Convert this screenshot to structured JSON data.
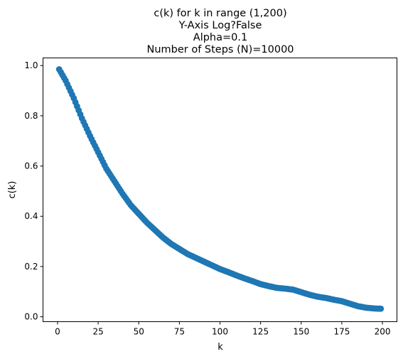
{
  "chart_data": {
    "type": "scatter",
    "title_lines": [
      "c(k) for k in range (1,200)",
      "Y-Axis Log?False",
      "Alpha=0.1",
      "Number of Steps (N)=10000"
    ],
    "xlabel": "k",
    "ylabel": "c(k)",
    "xlim": [
      -8.95,
      208.95
    ],
    "ylim": [
      -0.0196,
      1.0303
    ],
    "x_ticks": [
      0,
      25,
      50,
      75,
      100,
      125,
      150,
      175,
      200
    ],
    "y_ticks": [
      0.0,
      0.2,
      0.4,
      0.6,
      0.8,
      1.0
    ],
    "y_tick_labels": [
      "0.0",
      "0.2",
      "0.4",
      "0.6",
      "0.8",
      "1.0"
    ],
    "grid": false,
    "color": "#1f77b4",
    "series": [
      {
        "k_range": [
          1,
          199
        ],
        "anchors": [
          [
            1,
            0.985
          ],
          [
            5,
            0.94
          ],
          [
            10,
            0.87
          ],
          [
            15,
            0.79
          ],
          [
            20,
            0.72
          ],
          [
            25,
            0.655
          ],
          [
            30,
            0.59
          ],
          [
            35,
            0.54
          ],
          [
            40,
            0.49
          ],
          [
            45,
            0.445
          ],
          [
            50,
            0.41
          ],
          [
            55,
            0.375
          ],
          [
            60,
            0.345
          ],
          [
            65,
            0.315
          ],
          [
            70,
            0.29
          ],
          [
            75,
            0.27
          ],
          [
            80,
            0.25
          ],
          [
            85,
            0.235
          ],
          [
            90,
            0.22
          ],
          [
            95,
            0.205
          ],
          [
            100,
            0.19
          ],
          [
            105,
            0.178
          ],
          [
            110,
            0.165
          ],
          [
            115,
            0.153
          ],
          [
            120,
            0.142
          ],
          [
            125,
            0.13
          ],
          [
            130,
            0.122
          ],
          [
            135,
            0.115
          ],
          [
            140,
            0.112
          ],
          [
            145,
            0.108
          ],
          [
            150,
            0.098
          ],
          [
            155,
            0.088
          ],
          [
            160,
            0.08
          ],
          [
            165,
            0.075
          ],
          [
            170,
            0.068
          ],
          [
            175,
            0.062
          ],
          [
            180,
            0.052
          ],
          [
            185,
            0.042
          ],
          [
            190,
            0.036
          ],
          [
            195,
            0.033
          ],
          [
            199,
            0.032
          ]
        ]
      }
    ]
  }
}
